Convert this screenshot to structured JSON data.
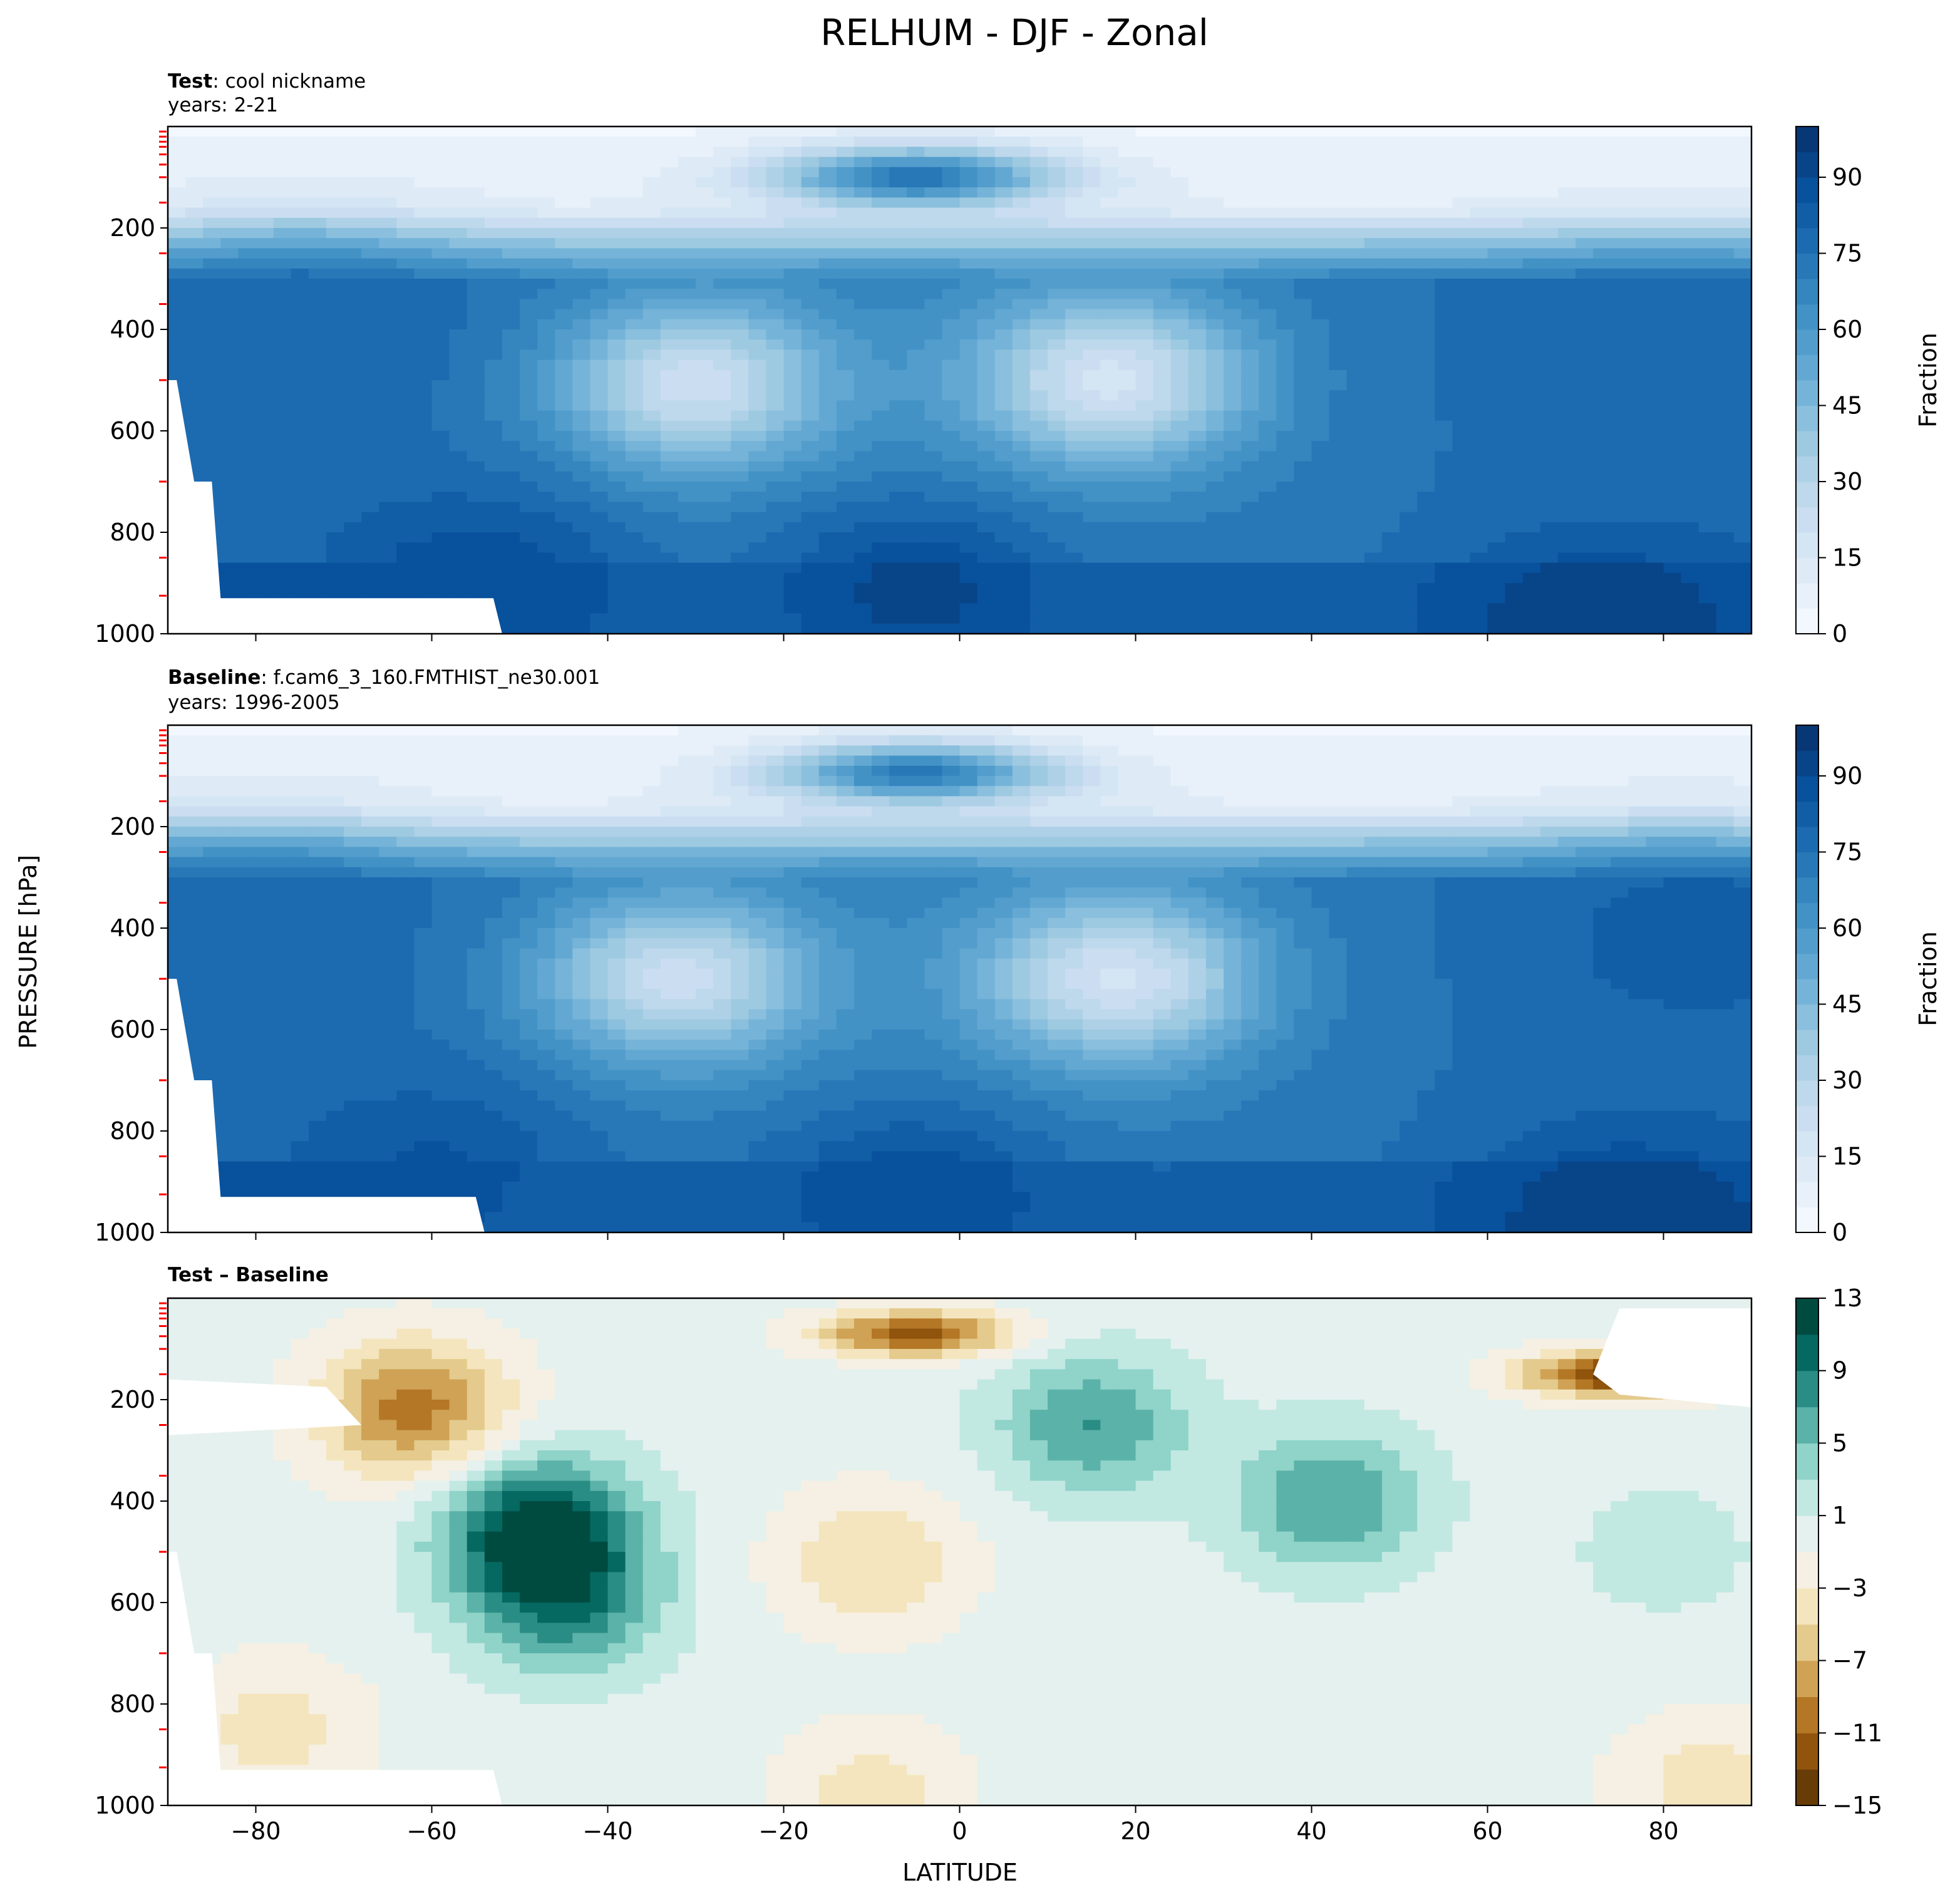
{
  "figure": {
    "title": "RELHUM - DJF - Zonal",
    "xlabel": "LATITUDE",
    "ylabel": "PRESSURE [hPa]"
  },
  "chart_data": [
    {
      "type": "heatmap",
      "panel": "test",
      "title_bold": "Test",
      "title_rest": ": cool nickname",
      "subtitle": "years: 2-21",
      "x_range": [
        -90,
        90
      ],
      "y_range": [
        1000,
        0
      ],
      "x_ticks": [
        -80,
        -60,
        -40,
        -20,
        0,
        20,
        40,
        60,
        80
      ],
      "x_tick_labels_shown": false,
      "y_ticks": [
        200,
        400,
        600,
        800,
        1000
      ],
      "colorbar": {
        "label": "Fraction",
        "min": 0,
        "max": 100,
        "ticks": [
          0,
          15,
          30,
          45,
          60,
          75,
          90
        ],
        "levels": 20,
        "colormap": "Blues"
      },
      "surface_mask": [
        [
          -89,
          500
        ],
        [
          -87,
          700
        ],
        [
          -85,
          700
        ],
        [
          -84,
          930
        ],
        [
          -53,
          930
        ],
        [
          -52,
          1000
        ]
      ],
      "features": [
        {
          "lat": -30,
          "p": 510,
          "value": 22
        },
        {
          "lat": 17,
          "p": 500,
          "value": 18
        },
        {
          "lat": -5,
          "p": 100,
          "value": 75
        },
        {
          "lat": -5,
          "p": 920,
          "value": 92
        },
        {
          "lat": -55,
          "p": 900,
          "value": 90
        },
        {
          "lat": 72,
          "p": 990,
          "value": 95
        },
        {
          "lat": -75,
          "p": 400,
          "value": 80
        },
        {
          "lat": 80,
          "p": 450,
          "value": 80
        }
      ]
    },
    {
      "type": "heatmap",
      "panel": "baseline",
      "title_bold": "Baseline",
      "title_rest": ": f.cam6_3_160.FMTHIST_ne30.001",
      "subtitle": "years: 1996-2005",
      "x_range": [
        -90,
        90
      ],
      "y_range": [
        1000,
        0
      ],
      "x_ticks": [
        -80,
        -60,
        -40,
        -20,
        0,
        20,
        40,
        60,
        80
      ],
      "x_tick_labels_shown": false,
      "y_ticks": [
        200,
        400,
        600,
        800,
        1000
      ],
      "colorbar": {
        "label": "Fraction",
        "min": 0,
        "max": 100,
        "ticks": [
          0,
          15,
          30,
          45,
          60,
          75,
          90
        ],
        "levels": 20,
        "colormap": "Blues"
      },
      "surface_mask": [
        [
          -89,
          500
        ],
        [
          -87,
          700
        ],
        [
          -85,
          700
        ],
        [
          -84,
          930
        ],
        [
          -55,
          930
        ],
        [
          -54,
          1000
        ]
      ],
      "features": [
        {
          "lat": -32,
          "p": 500,
          "value": 23
        },
        {
          "lat": 18,
          "p": 500,
          "value": 19
        },
        {
          "lat": -5,
          "p": 95,
          "value": 72
        },
        {
          "lat": -5,
          "p": 930,
          "value": 90
        },
        {
          "lat": -60,
          "p": 880,
          "value": 86
        },
        {
          "lat": 75,
          "p": 980,
          "value": 95
        },
        {
          "lat": -80,
          "p": 400,
          "value": 78
        },
        {
          "lat": 82,
          "p": 430,
          "value": 82
        }
      ]
    },
    {
      "type": "heatmap",
      "panel": "difference",
      "title_bold": "Test – Baseline",
      "title_rest": "",
      "subtitle": "",
      "x_range": [
        -90,
        90
      ],
      "y_range": [
        1000,
        0
      ],
      "x_ticks": [
        -80,
        -60,
        -40,
        -20,
        0,
        20,
        40,
        60,
        80
      ],
      "x_tick_labels_shown": true,
      "y_ticks": [
        200,
        400,
        600,
        800,
        1000
      ],
      "colorbar": {
        "label": "",
        "min": -15,
        "max": 13,
        "ticks": [
          -15,
          -11,
          -7,
          -3,
          1,
          5,
          9,
          13
        ],
        "levels": 14,
        "colormap": "BrBG"
      },
      "surface_mask": [
        [
          -89,
          500
        ],
        [
          -87,
          700
        ],
        [
          -85,
          700
        ],
        [
          -84,
          930
        ],
        [
          -53,
          930
        ],
        [
          -52,
          1000
        ]
      ],
      "features": [
        {
          "lat": -48,
          "p": 450,
          "value": 12
        },
        {
          "lat": -45,
          "p": 600,
          "value": 8
        },
        {
          "lat": 15,
          "p": 250,
          "value": 7
        },
        {
          "lat": 42,
          "p": 400,
          "value": 7
        },
        {
          "lat": -10,
          "p": 520,
          "value": -5
        },
        {
          "lat": -5,
          "p": 70,
          "value": -12
        },
        {
          "lat": 75,
          "p": 150,
          "value": -14
        },
        {
          "lat": -62,
          "p": 220,
          "value": -10
        },
        {
          "lat": -78,
          "p": 850,
          "value": -4
        },
        {
          "lat": -10,
          "p": 980,
          "value": -4
        },
        {
          "lat": 85,
          "p": 960,
          "value": -4
        },
        {
          "lat": 80,
          "p": 500,
          "value": 2
        }
      ],
      "missing_regions": [
        {
          "name": "nh-high-lat-upper",
          "points": [
            [
              75,
              20
            ],
            [
              90,
              20
            ],
            [
              90,
              215
            ],
            [
              75,
              190
            ],
            [
              72,
              150
            ]
          ]
        },
        {
          "name": "sh-high-lat-upper",
          "points": [
            [
              -90,
              160
            ],
            [
              -72,
              175
            ],
            [
              -68,
              250
            ],
            [
              -90,
              270
            ]
          ]
        }
      ]
    }
  ]
}
